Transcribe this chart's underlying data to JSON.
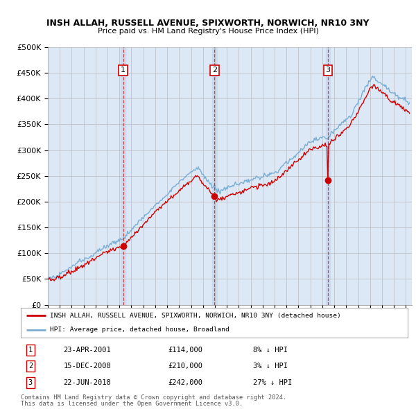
{
  "title1": "INSH ALLAH, RUSSELL AVENUE, SPIXWORTH, NORWICH, NR10 3NY",
  "title2": "Price paid vs. HM Land Registry's House Price Index (HPI)",
  "legend_red": "INSH ALLAH, RUSSELL AVENUE, SPIXWORTH, NORWICH, NR10 3NY (detached house)",
  "legend_blue": "HPI: Average price, detached house, Broadland",
  "sales": [
    {
      "num": 1,
      "date_x": 2001.31,
      "price": 114000,
      "label": "23-APR-2001",
      "amount": "£114,000",
      "pct": "8% ↓ HPI"
    },
    {
      "num": 2,
      "date_x": 2008.96,
      "price": 210000,
      "label": "15-DEC-2008",
      "amount": "£210,000",
      "pct": "3% ↓ HPI"
    },
    {
      "num": 3,
      "date_x": 2018.47,
      "price": 242000,
      "label": "22-JUN-2018",
      "amount": "£242,000",
      "pct": "27% ↓ HPI"
    }
  ],
  "ylim": [
    0,
    500000
  ],
  "xlim": [
    1995,
    2025.5
  ],
  "yticks": [
    0,
    50000,
    100000,
    150000,
    200000,
    250000,
    300000,
    350000,
    400000,
    450000,
    500000
  ],
  "ytick_labels": [
    "£0",
    "£50K",
    "£100K",
    "£150K",
    "£200K",
    "£250K",
    "£300K",
    "£350K",
    "£400K",
    "£450K",
    "£500K"
  ],
  "background_color": "#dce8f5",
  "red_color": "#cc0000",
  "blue_color": "#7aadd4",
  "grid_color": "#bbbbbb",
  "vband_color": "#c8daf0",
  "footnote1": "Contains HM Land Registry data © Crown copyright and database right 2024.",
  "footnote2": "This data is licensed under the Open Government Licence v3.0."
}
